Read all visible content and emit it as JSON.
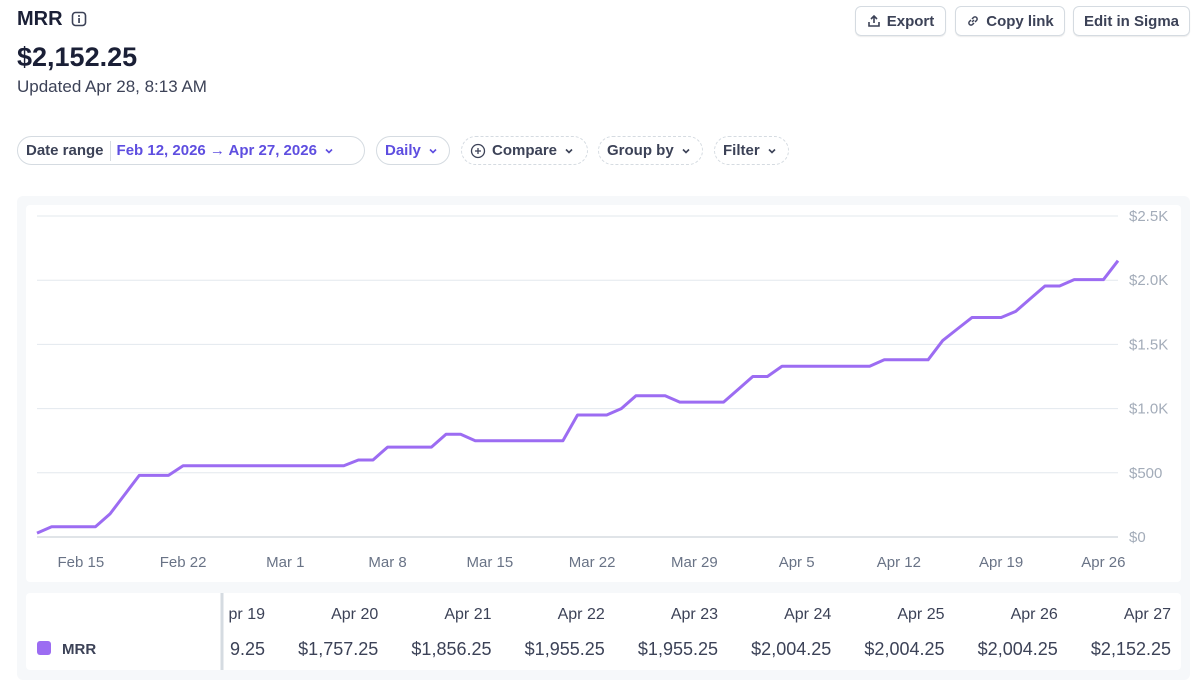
{
  "header": {
    "title": "MRR",
    "value": "$2,152.25",
    "updated": "Updated Apr 28, 8:13 AM",
    "buttons": [
      "Export",
      "Copy link",
      "Edit in Sigma"
    ]
  },
  "filters": {
    "date_range_label": "Date range",
    "date_range_value": "Feb 12, 2026 → Apr 27, 2026",
    "interval": "Daily",
    "compare": "Compare",
    "group_by": "Group by",
    "filter": "Filter"
  },
  "chart_data": {
    "type": "line",
    "x": [
      "Feb 12",
      "Feb 13",
      "Feb 14",
      "Feb 15",
      "Feb 16",
      "Feb 17",
      "Feb 18",
      "Feb 19",
      "Feb 20",
      "Feb 21",
      "Feb 22",
      "Feb 23",
      "Feb 24",
      "Feb 25",
      "Feb 26",
      "Feb 27",
      "Feb 28",
      "Mar 1",
      "Mar 2",
      "Mar 3",
      "Mar 4",
      "Mar 5",
      "Mar 6",
      "Mar 7",
      "Mar 8",
      "Mar 9",
      "Mar 10",
      "Mar 11",
      "Mar 12",
      "Mar 13",
      "Mar 14",
      "Mar 15",
      "Mar 16",
      "Mar 17",
      "Mar 18",
      "Mar 19",
      "Mar 20",
      "Mar 21",
      "Mar 22",
      "Mar 23",
      "Mar 24",
      "Mar 25",
      "Mar 26",
      "Mar 27",
      "Mar 28",
      "Mar 29",
      "Mar 30",
      "Mar 31",
      "Apr 1",
      "Apr 2",
      "Apr 3",
      "Apr 4",
      "Apr 5",
      "Apr 6",
      "Apr 7",
      "Apr 8",
      "Apr 9",
      "Apr 10",
      "Apr 11",
      "Apr 12",
      "Apr 13",
      "Apr 14",
      "Apr 15",
      "Apr 16",
      "Apr 17",
      "Apr 18",
      "Apr 19",
      "Apr 20",
      "Apr 21",
      "Apr 22",
      "Apr 23",
      "Apr 24",
      "Apr 25",
      "Apr 26",
      "Apr 27"
    ],
    "series": [
      {
        "name": "MRR",
        "color": "#9c6cf2",
        "values": [
          30,
          80,
          80,
          80,
          80,
          180,
          330,
          480,
          480,
          480,
          555,
          555,
          555,
          555,
          555,
          555,
          555,
          555,
          555,
          555,
          555,
          555,
          600,
          600,
          700,
          700,
          700,
          700,
          800,
          800,
          750,
          750,
          750,
          750,
          750,
          750,
          750,
          950,
          950,
          950,
          1000,
          1100,
          1100,
          1100,
          1050,
          1050,
          1050,
          1050,
          1150,
          1250,
          1250,
          1330,
          1330,
          1330,
          1330,
          1330,
          1330,
          1330,
          1380,
          1380,
          1380,
          1380,
          1530,
          1620,
          1709.25,
          1709.25,
          1709.25,
          1757.25,
          1856.25,
          1955.25,
          1955.25,
          2004.25,
          2004.25,
          2004.25,
          2152.25
        ]
      }
    ],
    "xticks": [
      "Feb 15",
      "Feb 22",
      "Mar 1",
      "Mar 8",
      "Mar 15",
      "Mar 22",
      "Mar 29",
      "Apr 5",
      "Apr 12",
      "Apr 19",
      "Apr 26"
    ],
    "ylim": [
      0,
      2500
    ],
    "yticks": [
      {
        "value": 0,
        "label": "$0"
      },
      {
        "value": 500,
        "label": "$500"
      },
      {
        "value": 1000,
        "label": "$1.0K"
      },
      {
        "value": 1500,
        "label": "$1.5K"
      },
      {
        "value": 2000,
        "label": "$2.0K"
      },
      {
        "value": 2500,
        "label": "$2.5K"
      }
    ],
    "grid": true
  },
  "table": {
    "columns": [
      "pr 19",
      "Apr 20",
      "Apr 21",
      "Apr 22",
      "Apr 23",
      "Apr 24",
      "Apr 25",
      "Apr 26",
      "Apr 27"
    ],
    "cells": [
      "9.25",
      "$1,757.25",
      "$1,856.25",
      "$1,955.25",
      "$1,955.25",
      "$2,004.25",
      "$2,004.25",
      "$2,004.25",
      "$2,152.25"
    ]
  }
}
